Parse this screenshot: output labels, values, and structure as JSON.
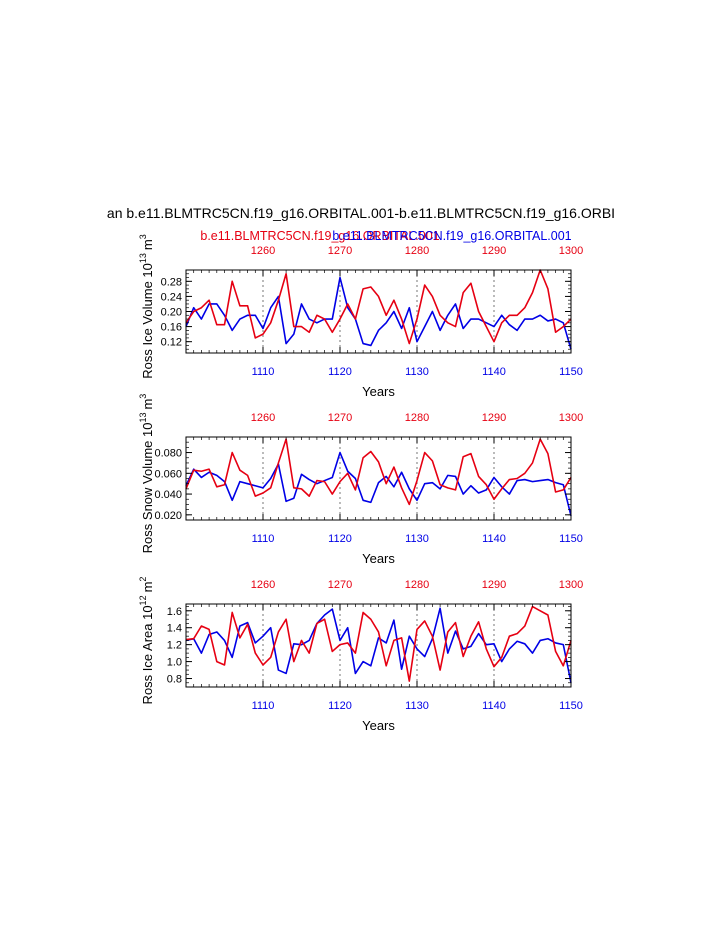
{
  "figure": {
    "title": "an b.e11.BLMTRC5CN.f19_g16.ORBITAL.001-b.e11.BLMTRC5CN.f19_g16.ORBI",
    "legend_red": "b.e11.BLMTRC5CN.f19_g16.ORBITAL.001",
    "legend_blue": "b.e11.BLMTRC5CN.f19_g16.ORBITAL.001",
    "colors": {
      "red": "#e60012",
      "blue": "#0000e6",
      "axis": "#000000",
      "grid": "#555555"
    }
  },
  "chart_data": [
    {
      "type": "line",
      "title": "",
      "xlabel": "Years",
      "ylabel_main": "Ross Ice Volume 10",
      "ylabel_exp1": "13",
      "ylabel_unit": "m",
      "ylabel_exp2": "3",
      "ylim": [
        0.09,
        0.31
      ],
      "yticks": [
        0.12,
        0.16,
        0.2,
        0.24,
        0.28
      ],
      "ytick_labels": [
        "0.12",
        "0.16",
        "0.20",
        "0.24",
        "0.28"
      ],
      "x_bottom": {
        "range": [
          1100,
          1150
        ],
        "ticks": [
          1110,
          1120,
          1130,
          1140,
          1150
        ],
        "labels": [
          "1110",
          "1120",
          "1130",
          "1140",
          "1150"
        ]
      },
      "x_top": {
        "range": [
          1250,
          1300
        ],
        "ticks": [
          1260,
          1270,
          1280,
          1290,
          1300
        ],
        "labels": [
          "1260",
          "1270",
          "1280",
          "1290",
          "1300"
        ]
      },
      "series": [
        {
          "name": "b.e11.BLMTRC5CN.f19_g16.ORBITAL.001",
          "axis": "bottom",
          "color": "#0000e6",
          "x": [
            1100,
            1101,
            1102,
            1103,
            1104,
            1105,
            1106,
            1107,
            1108,
            1109,
            1110,
            1111,
            1112,
            1113,
            1114,
            1115,
            1116,
            1117,
            1118,
            1119,
            1120,
            1121,
            1122,
            1123,
            1124,
            1125,
            1126,
            1127,
            1128,
            1129,
            1130,
            1131,
            1132,
            1133,
            1134,
            1135,
            1136,
            1137,
            1138,
            1139,
            1140,
            1141,
            1142,
            1143,
            1144,
            1145,
            1146,
            1147,
            1148,
            1149,
            1150
          ],
          "values": [
            0.16,
            0.21,
            0.18,
            0.22,
            0.22,
            0.19,
            0.15,
            0.18,
            0.19,
            0.19,
            0.155,
            0.21,
            0.24,
            0.115,
            0.14,
            0.22,
            0.18,
            0.17,
            0.18,
            0.18,
            0.29,
            0.21,
            0.18,
            0.115,
            0.11,
            0.15,
            0.17,
            0.2,
            0.155,
            0.21,
            0.12,
            0.16,
            0.2,
            0.15,
            0.19,
            0.22,
            0.155,
            0.18,
            0.18,
            0.17,
            0.16,
            0.19,
            0.165,
            0.15,
            0.18,
            0.18,
            0.19,
            0.175,
            0.18,
            0.17,
            0.1
          ]
        },
        {
          "name": "b.e11.BLMTRC5CN.f19_g16.ORBITAL.001",
          "axis": "top",
          "color": "#e60012",
          "x": [
            1250,
            1251,
            1252,
            1253,
            1254,
            1255,
            1256,
            1257,
            1258,
            1259,
            1260,
            1261,
            1262,
            1263,
            1264,
            1265,
            1266,
            1267,
            1268,
            1269,
            1270,
            1271,
            1272,
            1273,
            1274,
            1275,
            1276,
            1277,
            1278,
            1279,
            1280,
            1281,
            1282,
            1283,
            1284,
            1285,
            1286,
            1287,
            1288,
            1289,
            1290,
            1291,
            1292,
            1293,
            1294,
            1295,
            1296,
            1297,
            1298,
            1299,
            1300
          ],
          "values": [
            0.17,
            0.2,
            0.21,
            0.23,
            0.165,
            0.165,
            0.28,
            0.215,
            0.215,
            0.13,
            0.14,
            0.17,
            0.23,
            0.3,
            0.16,
            0.16,
            0.145,
            0.19,
            0.18,
            0.145,
            0.18,
            0.22,
            0.18,
            0.26,
            0.265,
            0.24,
            0.19,
            0.23,
            0.18,
            0.115,
            0.18,
            0.27,
            0.24,
            0.19,
            0.17,
            0.16,
            0.25,
            0.275,
            0.2,
            0.16,
            0.12,
            0.17,
            0.19,
            0.19,
            0.21,
            0.25,
            0.31,
            0.26,
            0.145,
            0.16,
            0.18
          ]
        }
      ]
    },
    {
      "type": "line",
      "title": "",
      "xlabel": "Years",
      "ylabel_main": "Ross Snow Volume 10",
      "ylabel_exp1": "13",
      "ylabel_unit": "m",
      "ylabel_exp2": "3",
      "ylim": [
        0.015,
        0.095
      ],
      "yticks": [
        0.02,
        0.04,
        0.06,
        0.08
      ],
      "ytick_labels": [
        "0.020",
        "0.040",
        "0.060",
        "0.080"
      ],
      "x_bottom": {
        "range": [
          1100,
          1150
        ],
        "ticks": [
          1110,
          1120,
          1130,
          1140,
          1150
        ],
        "labels": [
          "1110",
          "1120",
          "1130",
          "1140",
          "1150"
        ]
      },
      "x_top": {
        "range": [
          1250,
          1300
        ],
        "ticks": [
          1260,
          1270,
          1280,
          1290,
          1300
        ],
        "labels": [
          "1260",
          "1270",
          "1280",
          "1290",
          "1300"
        ]
      },
      "series": [
        {
          "name": "b.e11.BLMTRC5CN.f19_g16.ORBITAL.001",
          "axis": "bottom",
          "color": "#0000e6",
          "x": [
            1100,
            1101,
            1102,
            1103,
            1104,
            1105,
            1106,
            1107,
            1108,
            1109,
            1110,
            1111,
            1112,
            1113,
            1114,
            1115,
            1116,
            1117,
            1118,
            1119,
            1120,
            1121,
            1122,
            1123,
            1124,
            1125,
            1126,
            1127,
            1128,
            1129,
            1130,
            1131,
            1132,
            1133,
            1134,
            1135,
            1136,
            1137,
            1138,
            1139,
            1140,
            1141,
            1142,
            1143,
            1144,
            1145,
            1146,
            1147,
            1148,
            1149,
            1150
          ],
          "values": [
            0.048,
            0.064,
            0.056,
            0.061,
            0.058,
            0.052,
            0.034,
            0.052,
            0.05,
            0.048,
            0.046,
            0.055,
            0.069,
            0.033,
            0.036,
            0.059,
            0.054,
            0.05,
            0.053,
            0.056,
            0.08,
            0.062,
            0.055,
            0.034,
            0.032,
            0.051,
            0.057,
            0.047,
            0.061,
            0.045,
            0.034,
            0.05,
            0.051,
            0.045,
            0.058,
            0.057,
            0.04,
            0.048,
            0.041,
            0.044,
            0.056,
            0.047,
            0.04,
            0.053,
            0.054,
            0.052,
            0.053,
            0.054,
            0.051,
            0.049,
            0.019
          ]
        },
        {
          "name": "b.e11.BLMTRC5CN.f19_g16.ORBITAL.001",
          "axis": "top",
          "color": "#e60012",
          "x": [
            1250,
            1251,
            1252,
            1253,
            1254,
            1255,
            1256,
            1257,
            1258,
            1259,
            1260,
            1261,
            1262,
            1263,
            1264,
            1265,
            1266,
            1267,
            1268,
            1269,
            1270,
            1271,
            1272,
            1273,
            1274,
            1275,
            1276,
            1277,
            1278,
            1279,
            1280,
            1281,
            1282,
            1283,
            1284,
            1285,
            1286,
            1287,
            1288,
            1289,
            1290,
            1291,
            1292,
            1293,
            1294,
            1295,
            1296,
            1297,
            1298,
            1299,
            1300
          ],
          "values": [
            0.045,
            0.063,
            0.062,
            0.064,
            0.047,
            0.049,
            0.08,
            0.063,
            0.058,
            0.038,
            0.041,
            0.046,
            0.07,
            0.093,
            0.046,
            0.045,
            0.038,
            0.053,
            0.052,
            0.04,
            0.052,
            0.06,
            0.044,
            0.075,
            0.081,
            0.071,
            0.05,
            0.066,
            0.046,
            0.03,
            0.053,
            0.08,
            0.072,
            0.049,
            0.046,
            0.044,
            0.076,
            0.079,
            0.057,
            0.049,
            0.035,
            0.045,
            0.054,
            0.055,
            0.06,
            0.07,
            0.093,
            0.079,
            0.042,
            0.044,
            0.056
          ]
        }
      ]
    },
    {
      "type": "line",
      "title": "",
      "xlabel": "Years",
      "ylabel_main": "Ross Ice Area 10",
      "ylabel_exp1": "12",
      "ylabel_unit": "m",
      "ylabel_exp2": "2",
      "ylim": [
        0.7,
        1.68
      ],
      "yticks": [
        0.8,
        1.0,
        1.2,
        1.4,
        1.6
      ],
      "ytick_labels": [
        "0.8",
        "1.0",
        "1.2",
        "1.4",
        "1.6"
      ],
      "x_bottom": {
        "range": [
          1100,
          1150
        ],
        "ticks": [
          1110,
          1120,
          1130,
          1140,
          1150
        ],
        "labels": [
          "1110",
          "1120",
          "1130",
          "1140",
          "1150"
        ]
      },
      "x_top": {
        "range": [
          1250,
          1300
        ],
        "ticks": [
          1260,
          1270,
          1280,
          1290,
          1300
        ],
        "labels": [
          "1260",
          "1270",
          "1280",
          "1290",
          "1300"
        ]
      },
      "series": [
        {
          "name": "b.e11.BLMTRC5CN.f19_g16.ORBITAL.001",
          "axis": "bottom",
          "color": "#0000e6",
          "x": [
            1100,
            1101,
            1102,
            1103,
            1104,
            1105,
            1106,
            1107,
            1108,
            1109,
            1110,
            1111,
            1112,
            1113,
            1114,
            1115,
            1116,
            1117,
            1118,
            1119,
            1120,
            1121,
            1122,
            1123,
            1124,
            1125,
            1126,
            1127,
            1128,
            1129,
            1130,
            1131,
            1132,
            1133,
            1134,
            1135,
            1136,
            1137,
            1138,
            1139,
            1140,
            1141,
            1142,
            1143,
            1144,
            1145,
            1146,
            1147,
            1148,
            1149,
            1150
          ],
          "values": [
            1.25,
            1.27,
            1.1,
            1.32,
            1.35,
            1.25,
            1.05,
            1.42,
            1.46,
            1.22,
            1.3,
            1.4,
            0.9,
            0.86,
            1.21,
            1.2,
            1.25,
            1.45,
            1.55,
            1.62,
            1.25,
            1.4,
            0.86,
            1.0,
            0.95,
            1.28,
            1.22,
            1.49,
            0.91,
            1.3,
            1.15,
            1.06,
            1.27,
            1.63,
            1.1,
            1.36,
            1.15,
            1.18,
            1.33,
            1.2,
            1.21,
            1.0,
            1.15,
            1.24,
            1.21,
            1.1,
            1.25,
            1.27,
            1.22,
            1.2,
            0.75
          ]
        },
        {
          "name": "b.e11.BLMTRC5CN.f19_g16.ORBITAL.001",
          "axis": "top",
          "color": "#e60012",
          "x": [
            1250,
            1251,
            1252,
            1253,
            1254,
            1255,
            1256,
            1257,
            1258,
            1259,
            1260,
            1261,
            1262,
            1263,
            1264,
            1265,
            1266,
            1267,
            1268,
            1269,
            1270,
            1271,
            1272,
            1273,
            1274,
            1275,
            1276,
            1277,
            1278,
            1279,
            1280,
            1281,
            1282,
            1283,
            1284,
            1285,
            1286,
            1287,
            1288,
            1289,
            1290,
            1291,
            1292,
            1293,
            1294,
            1295,
            1296,
            1297,
            1298,
            1299,
            1300
          ],
          "values": [
            1.26,
            1.27,
            1.42,
            1.38,
            1.0,
            0.96,
            1.58,
            1.28,
            1.44,
            1.1,
            0.96,
            1.05,
            1.35,
            1.5,
            1.0,
            1.25,
            1.1,
            1.45,
            1.5,
            1.12,
            1.2,
            1.22,
            1.1,
            1.58,
            1.5,
            1.35,
            0.95,
            1.25,
            1.28,
            0.77,
            1.38,
            1.48,
            1.3,
            0.9,
            1.35,
            1.46,
            1.06,
            1.3,
            1.47,
            1.15,
            0.94,
            1.05,
            1.3,
            1.33,
            1.42,
            1.65,
            1.6,
            1.55,
            1.12,
            0.95,
            1.25
          ]
        }
      ]
    }
  ]
}
